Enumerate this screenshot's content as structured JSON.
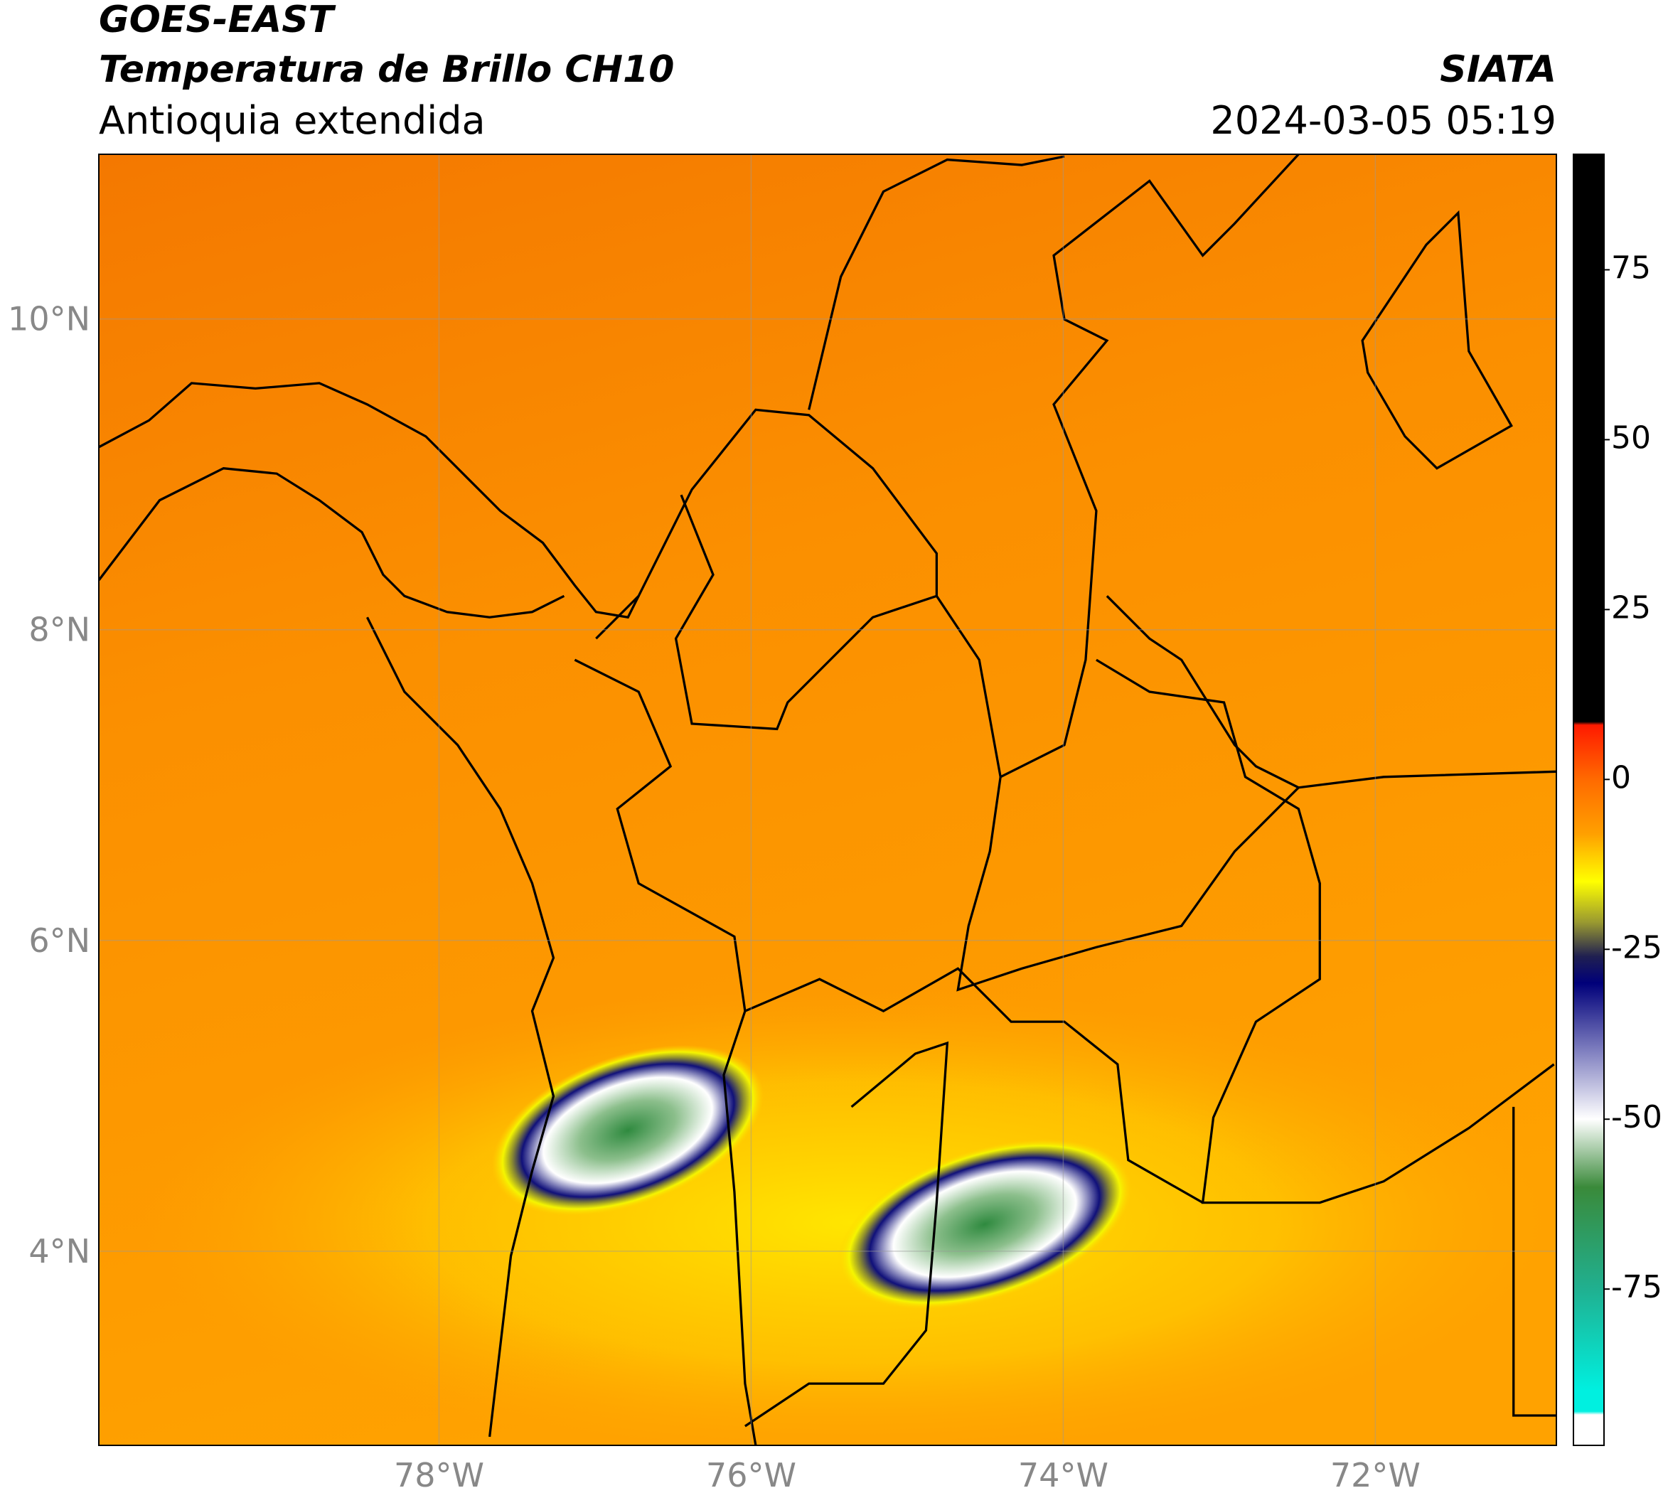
{
  "header": {
    "title": "GOES-EAST",
    "subtitle": "Temperatura de Brillo CH10",
    "region": "Antioquia extendida",
    "source": "SIATA",
    "datetime": "2024-03-05 05:19"
  },
  "map": {
    "lon_range": [
      -80.18,
      -70.84
    ],
    "lat_range": [
      2.75,
      11.06
    ],
    "grid": true,
    "lon_ticks": [
      {
        "value": -78,
        "label": "78°W"
      },
      {
        "value": -76,
        "label": "76°W"
      },
      {
        "value": -74,
        "label": "74°W"
      },
      {
        "value": -72,
        "label": "72°W"
      }
    ],
    "lat_ticks": [
      {
        "value": 10,
        "label": "10°N"
      },
      {
        "value": 8,
        "label": "8°N"
      },
      {
        "value": 6,
        "label": "6°N"
      },
      {
        "value": 4,
        "label": "4°N"
      }
    ]
  },
  "colorbar": {
    "range": [
      -98,
      92
    ],
    "ticks": [
      75,
      50,
      25,
      0,
      -25,
      -50,
      -75
    ],
    "stops": [
      {
        "value": 92,
        "color": "#000000"
      },
      {
        "value": 8.5,
        "color": "#000000"
      },
      {
        "value": 8,
        "color": "#ff1a00"
      },
      {
        "value": 0,
        "color": "#ff6a00"
      },
      {
        "value": -8,
        "color": "#ffa000"
      },
      {
        "value": -15,
        "color": "#ffff00"
      },
      {
        "value": -21,
        "color": "#9a9a30"
      },
      {
        "value": -26,
        "color": "#202050"
      },
      {
        "value": -30,
        "color": "#00007a"
      },
      {
        "value": -40,
        "color": "#8080c0"
      },
      {
        "value": -50,
        "color": "#ffffff"
      },
      {
        "value": -60,
        "color": "#3a8a3a"
      },
      {
        "value": -75,
        "color": "#20b090"
      },
      {
        "value": -90,
        "color": "#00f0e0"
      },
      {
        "value": -93,
        "color": "#00f0e0"
      },
      {
        "value": -93.5,
        "color": "#ffffff"
      },
      {
        "value": -98,
        "color": "#ffffff"
      }
    ]
  }
}
